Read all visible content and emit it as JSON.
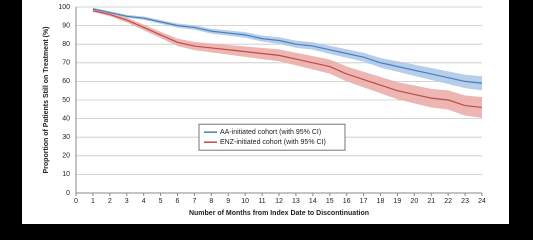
{
  "chart_data": {
    "type": "line",
    "x_label": "Number of Months from Index Date to Discontinuation",
    "y_label": "Proportion of Patients Still on Treatment (%)",
    "x": [
      1,
      2,
      3,
      4,
      5,
      6,
      7,
      8,
      9,
      10,
      11,
      12,
      13,
      14,
      15,
      16,
      17,
      18,
      19,
      20,
      21,
      22,
      23,
      24
    ],
    "series": [
      {
        "name": "AA-initiated cohort (with 95% CI)",
        "color": "#4a7ebb",
        "band_color": "#a9c6e6",
        "values": [
          99,
          97,
          95,
          94,
          92,
          90,
          89,
          87,
          86,
          85,
          83,
          82,
          80,
          79,
          77,
          75,
          73,
          70,
          68,
          66,
          64,
          62,
          60,
          59
        ],
        "ci_lower": [
          98.5,
          96.3,
          94.2,
          93.1,
          91,
          88.9,
          87.8,
          85.7,
          84.6,
          83.5,
          81.4,
          80.2,
          78.1,
          77,
          74.8,
          72.7,
          70.6,
          67.4,
          65.2,
          63,
          60.8,
          58.6,
          56.4,
          55.2
        ],
        "ci_upper": [
          99.5,
          97.7,
          95.8,
          94.9,
          93,
          91.1,
          90.2,
          88.3,
          87.4,
          86.5,
          84.6,
          83.8,
          81.9,
          81,
          79.2,
          77.3,
          75.4,
          72.6,
          70.8,
          69,
          67.2,
          65.4,
          63.6,
          62.8
        ]
      },
      {
        "name": "ENZ-initiated cohort (with 95% CI)",
        "color": "#be4b48",
        "band_color": "#eaa9a6",
        "values": [
          98,
          96,
          93,
          89,
          85,
          81,
          79,
          78,
          77,
          76,
          75,
          74,
          72,
          70,
          68,
          64,
          61,
          58,
          55,
          53,
          51,
          50,
          47,
          46
        ],
        "ci_lower": [
          97.3,
          95,
          91.7,
          87.5,
          83.3,
          79,
          76.8,
          75.6,
          74.4,
          73.2,
          72,
          70.8,
          68.6,
          66.4,
          64.2,
          60,
          56.8,
          53.6,
          50.4,
          48.2,
          46,
          44.8,
          41.6,
          40.4
        ],
        "ci_upper": [
          98.7,
          97,
          94.3,
          90.5,
          86.7,
          83,
          81.2,
          80.4,
          79.6,
          78.8,
          78,
          77.2,
          75.4,
          73.6,
          71.8,
          68,
          65.2,
          62.4,
          59.6,
          57.8,
          56,
          55.2,
          52.4,
          51.6
        ]
      }
    ],
    "xlim": [
      0,
      24
    ],
    "xticks": [
      0,
      1,
      2,
      3,
      4,
      5,
      6,
      7,
      8,
      9,
      10,
      11,
      12,
      13,
      14,
      15,
      16,
      17,
      18,
      19,
      20,
      21,
      22,
      23,
      24
    ],
    "ylim": [
      0,
      100
    ],
    "yticks": [
      0,
      10,
      20,
      30,
      40,
      50,
      60,
      70,
      80,
      90,
      100
    ],
    "grid": true,
    "legend": "center"
  }
}
